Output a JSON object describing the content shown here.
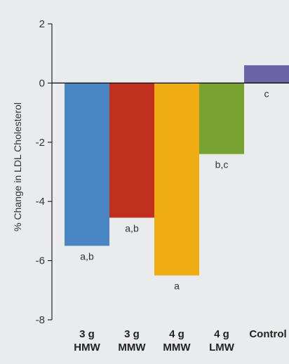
{
  "chart_data": {
    "type": "bar",
    "title": "",
    "xlabel": "",
    "ylabel": "% Change in LDL Cholesterol",
    "ylim": [
      -8,
      2
    ],
    "yticks": [
      2,
      0,
      -2,
      -4,
      -6,
      -8
    ],
    "grid": false,
    "categories": [
      [
        "3 g",
        "HMW"
      ],
      [
        "3 g",
        "MMW"
      ],
      [
        "4 g",
        "MMW"
      ],
      [
        "4 g",
        "LMW"
      ],
      [
        "Control"
      ]
    ],
    "values": [
      -5.5,
      -4.55,
      -6.5,
      -2.4,
      0.6
    ],
    "labels": [
      "a,b",
      "a,b",
      "a",
      "b,c",
      "c"
    ],
    "colors": [
      "#4a86c4",
      "#c0301e",
      "#f0ad13",
      "#77a22f",
      "#6b63a4"
    ]
  }
}
